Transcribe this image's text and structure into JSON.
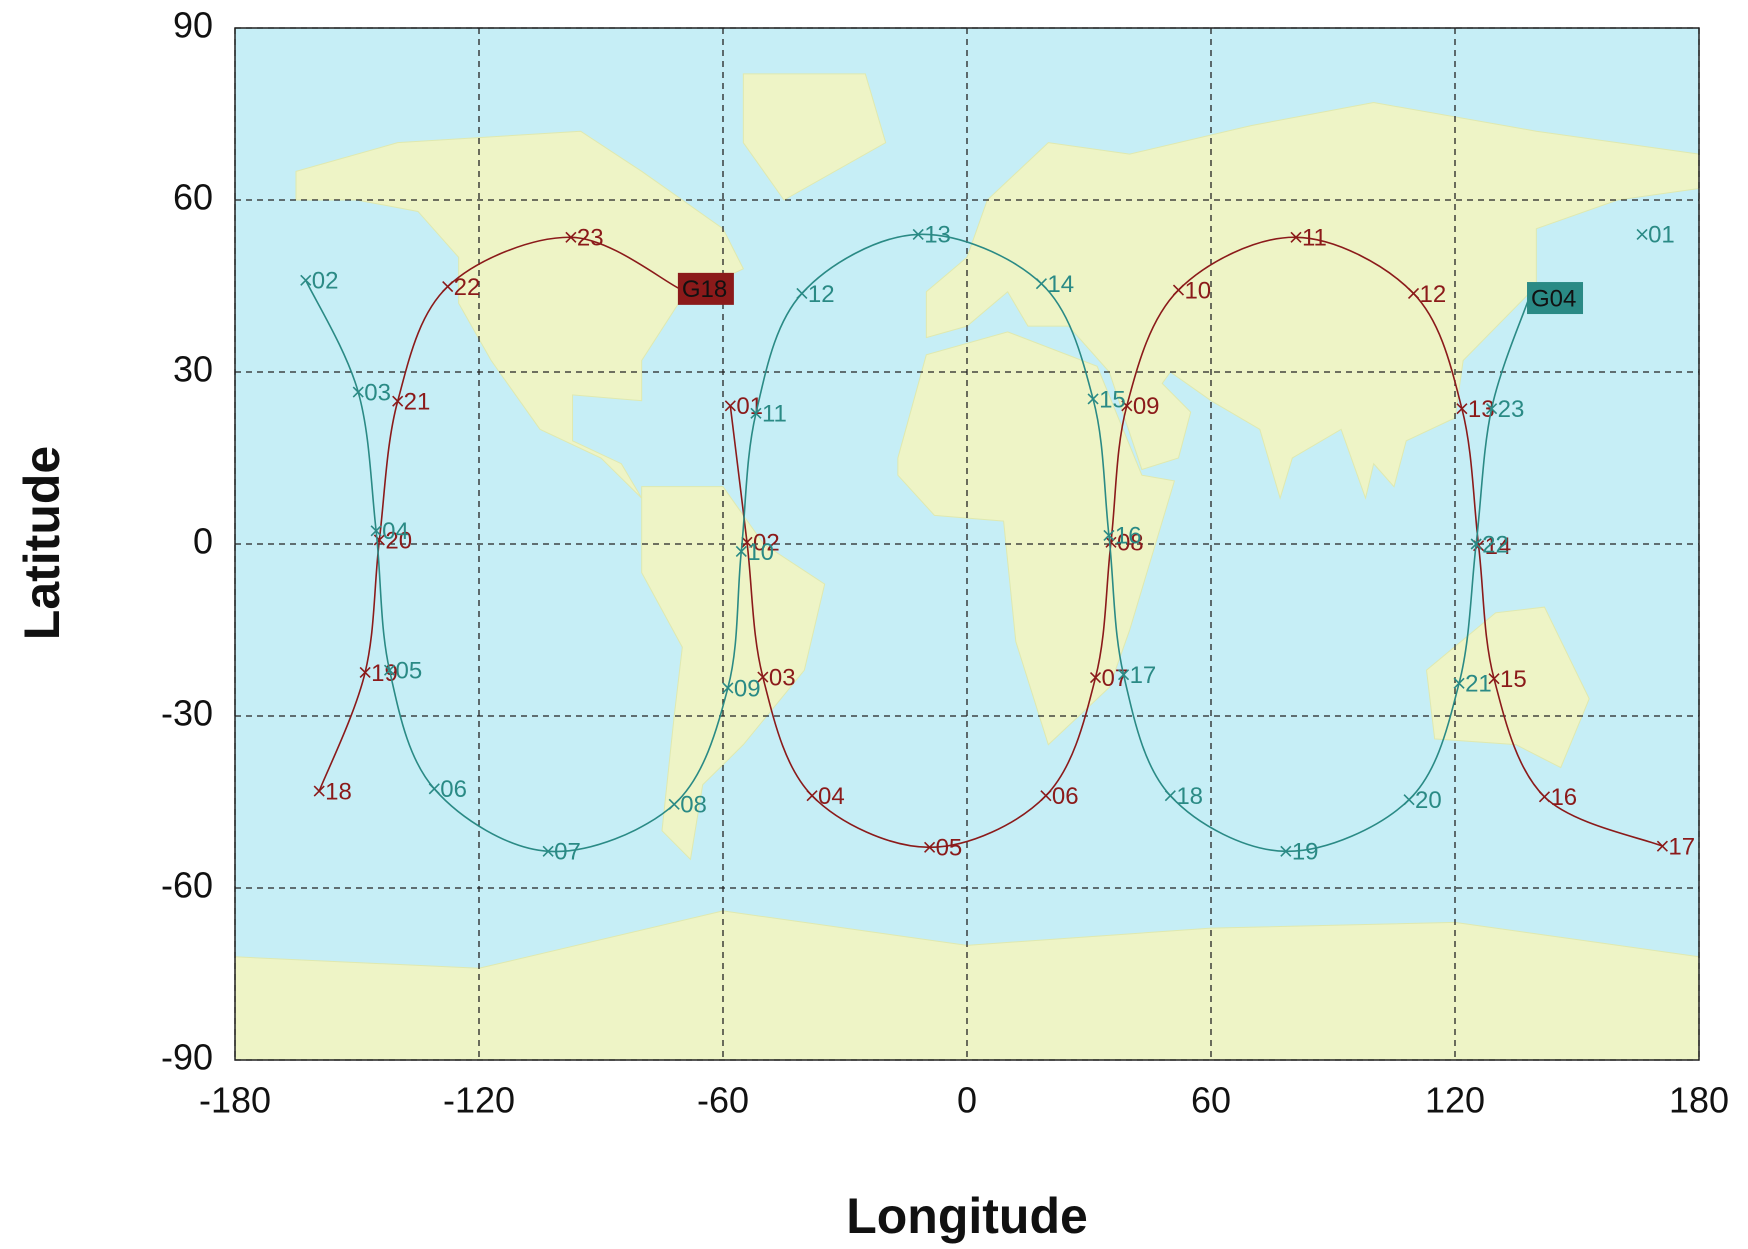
{
  "chart_data": {
    "type": "groundtrack",
    "x_label": "Longitude",
    "y_label": "Latitude",
    "xlim": [
      -180,
      180
    ],
    "xticks": [
      -180,
      -120,
      -60,
      0,
      60,
      120,
      180
    ],
    "ylim": [
      -90,
      90
    ],
    "yticks": [
      -90,
      -60,
      -30,
      0,
      30,
      60,
      90
    ],
    "grid": true,
    "series": [
      {
        "name": "G18",
        "color": "#8b1a1a",
        "labels": [
          "01",
          "02",
          "03",
          "04",
          "05",
          "06",
          "07",
          "08",
          "09",
          "10",
          "11",
          "12",
          "13",
          "14",
          "15",
          "16",
          "17",
          "18",
          "19",
          "20",
          "21",
          "22",
          "23"
        ],
        "x": [
          -58.2,
          -54.1,
          -50.2,
          -38.1,
          -9.2,
          19.4,
          31.6,
          35.4,
          39.3,
          52,
          80.9,
          109.8,
          121.7,
          125.8,
          129.6,
          142,
          171,
          -159.3,
          -148,
          -144.5,
          -140,
          -127.7,
          -97.4
        ],
        "values": [
          24.1,
          0.3,
          -23.2,
          -43.9,
          -52.9,
          -43.9,
          -23.3,
          0.3,
          24.1,
          44.3,
          53.5,
          43.7,
          23.6,
          -0.3,
          -23.5,
          -44.1,
          -52.7,
          -43.1,
          -22.4,
          0.7,
          24.9,
          44.9,
          53.5
        ],
        "current": {
          "x": -70.6,
          "y": 44.5
        }
      },
      {
        "name": "G04",
        "color": "#2a8a85",
        "labels": [
          "01",
          "02",
          "03",
          "04",
          "05",
          "06",
          "07",
          "08",
          "09",
          "10",
          "11",
          "12",
          "13",
          "14",
          "15",
          "16",
          "17",
          "18",
          "19",
          "20",
          "21",
          "22",
          "23"
        ],
        "x": [
          166,
          -162.6,
          -149.7,
          -145.3,
          -142,
          -131,
          -103,
          -72,
          -58.8,
          -55.5,
          -51.9,
          -40.6,
          -12,
          18.3,
          31,
          34.9,
          38.5,
          50,
          78.4,
          108.7,
          121,
          125.2,
          129
        ],
        "values": [
          54,
          46,
          26.5,
          2.3,
          -22,
          -42.7,
          -53.6,
          -45.4,
          -25.1,
          -1.3,
          22.8,
          43.7,
          54,
          45.4,
          25.3,
          1.5,
          -22.8,
          -43.9,
          -53.6,
          -44.6,
          -24.3,
          0,
          23.6
        ],
        "current": {
          "x": 138.2,
          "y": 42.9
        }
      }
    ]
  }
}
